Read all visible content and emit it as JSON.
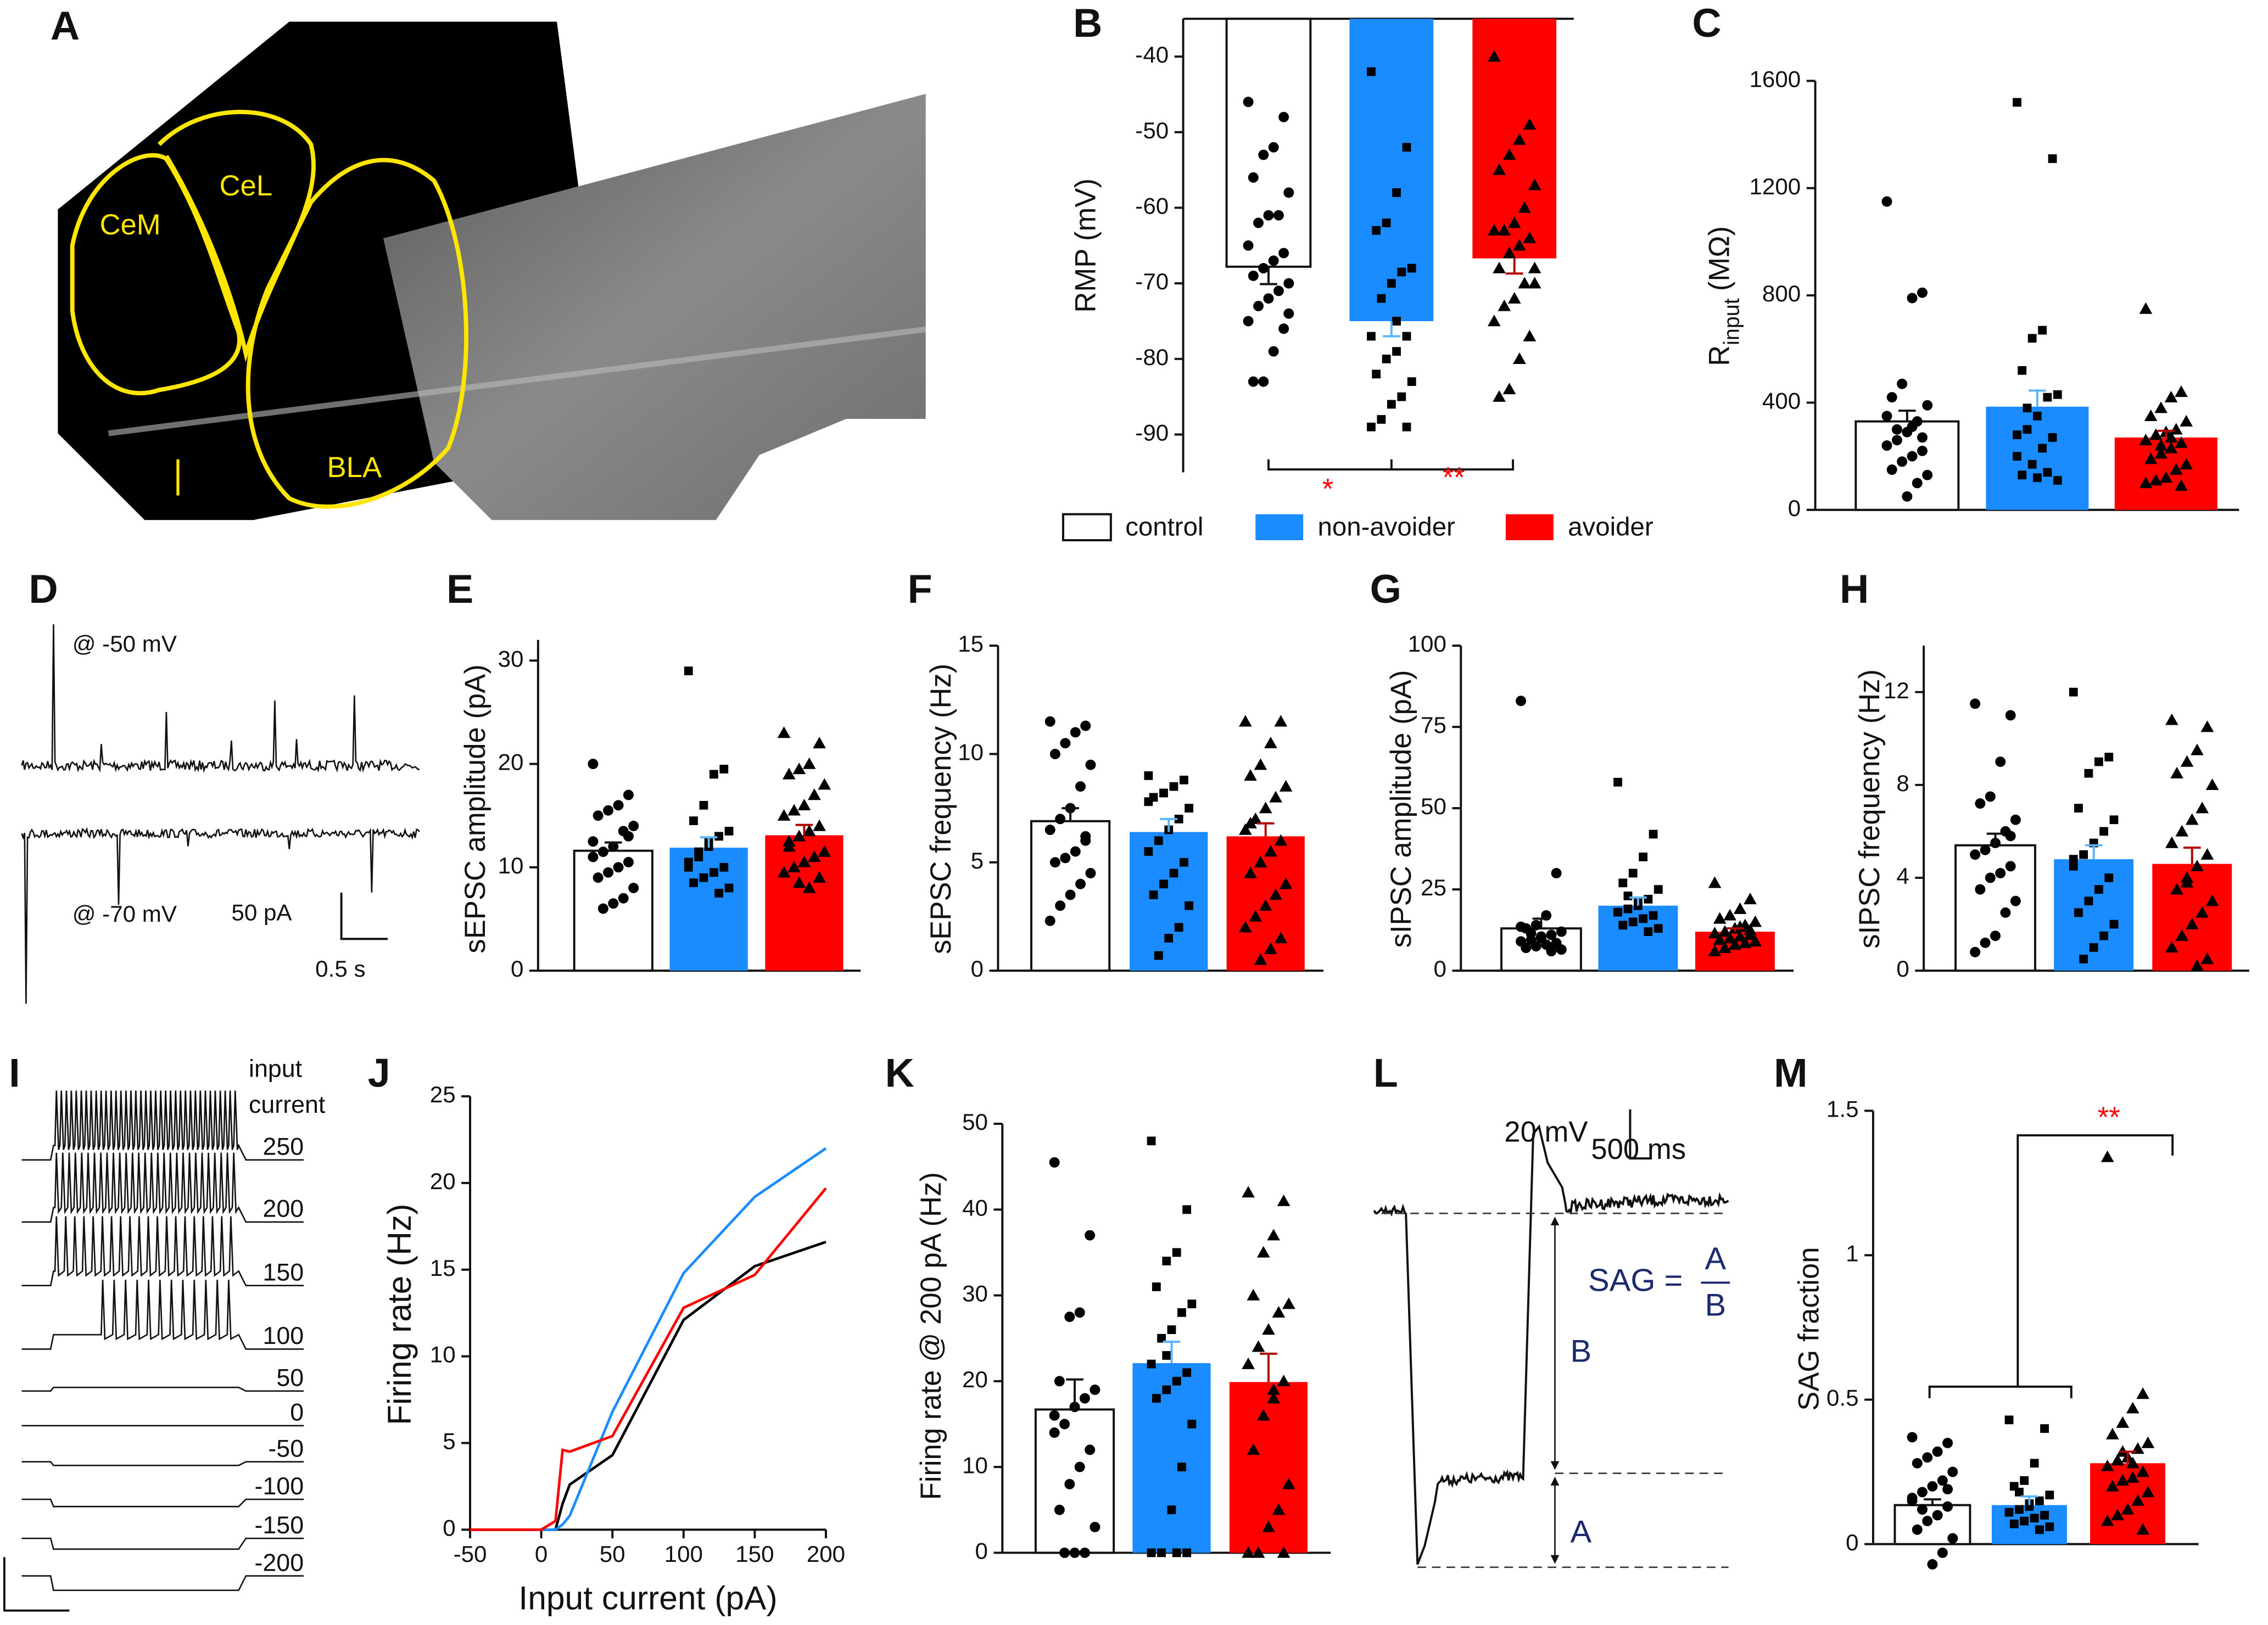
{
  "legend": [
    {
      "name": "control",
      "color": "#ffffff"
    },
    {
      "name": "non-avoider",
      "color": "#1a8cff"
    },
    {
      "name": "avoider",
      "color": "#ff0000"
    }
  ],
  "chart_data": [
    {
      "panel": "A",
      "type": "image",
      "labels": [
        "CeM",
        "CeL",
        "BLA"
      ]
    },
    {
      "panel": "B",
      "type": "bar",
      "ylabel": "RMP (mV)",
      "ylim": [
        -95,
        -35
      ],
      "yticks": [
        -40,
        -50,
        -60,
        -70,
        -80,
        -90
      ],
      "values": [
        -67.8,
        -75,
        -66.7
      ],
      "errors": [
        2.3,
        2,
        2
      ],
      "points": [
        [
          -46,
          -48,
          -52,
          -53,
          -56,
          -58,
          -61,
          -61,
          -62,
          -65,
          -66,
          -67,
          -68,
          -69,
          -70,
          -71,
          -72,
          -73,
          -75,
          -76,
          -79,
          -83,
          -83,
          -74
        ],
        [
          -42,
          -52,
          -58,
          -62,
          -63,
          -68,
          -68.5,
          -70,
          -72,
          -77,
          -77,
          -79,
          -80,
          -82,
          -83,
          -85,
          -86,
          -88,
          -89,
          -89,
          -75
        ],
        [
          -40,
          -49,
          -51,
          -53,
          -55,
          -57,
          -60,
          -62,
          -63,
          -63,
          -64,
          -65,
          -66,
          -68,
          -68,
          -70,
          -72,
          -73,
          -75,
          -77,
          -80,
          -84,
          -85,
          -70
        ]
      ],
      "annotations": [
        "*",
        "**"
      ],
      "annotation_color": "#ff0000"
    },
    {
      "panel": "C",
      "type": "bar",
      "ylabel": "R",
      "ylabel_sub": "input",
      "ylabel_unit": "(MΩ)",
      "ylim": [
        0,
        1600
      ],
      "yticks": [
        0,
        400,
        800,
        1200,
        1600
      ],
      "values": [
        330,
        385,
        270
      ],
      "errors": [
        40,
        60,
        25
      ],
      "points": [
        [
          1150,
          810,
          790,
          470,
          420,
          390,
          330,
          290,
          260,
          240,
          220,
          200,
          180,
          150,
          130,
          100,
          50,
          300,
          350,
          270,
          310
        ],
        [
          1520,
          1310,
          670,
          640,
          520,
          430,
          420,
          350,
          300,
          280,
          270,
          230,
          170,
          130,
          110,
          140,
          120,
          380,
          200
        ],
        [
          750,
          440,
          420,
          380,
          350,
          330,
          300,
          290,
          280,
          260,
          250,
          230,
          210,
          190,
          170,
          150,
          120,
          110,
          100,
          90,
          270,
          240
        ]
      ]
    },
    {
      "panel": "D",
      "type": "traces",
      "labels": [
        "@ -50 mV",
        "@ -70 mV"
      ],
      "scale": [
        "50 pA",
        "0.5 s"
      ]
    },
    {
      "panel": "E",
      "type": "bar",
      "ylabel": "sEPSC amplitude (pA)",
      "ylim": [
        0,
        32
      ],
      "yticks": [
        0,
        10,
        20,
        30
      ],
      "values": [
        11.6,
        11.9,
        13.1
      ],
      "errors": [
        0.8,
        1,
        1
      ],
      "points": [
        [
          20,
          17,
          16,
          15.5,
          15,
          14,
          13.5,
          12,
          11.5,
          11,
          10.5,
          10,
          9.5,
          9,
          8,
          7,
          6.5,
          6,
          12.5,
          13
        ],
        [
          29,
          19.5,
          19,
          16,
          14.5,
          13.5,
          13,
          12,
          11,
          10.5,
          10,
          9.5,
          9,
          8.5,
          8,
          7.5,
          12.5,
          11.5,
          10
        ],
        [
          23,
          22,
          20,
          19.5,
          19,
          18,
          17,
          16,
          15.5,
          15,
          14,
          13.5,
          13,
          12,
          11.5,
          11,
          10.5,
          10,
          9.5,
          9,
          8,
          8.5,
          12.5
        ]
      ]
    },
    {
      "panel": "F",
      "type": "bar",
      "ylabel": "sEPSC frequency (Hz)",
      "ylim": [
        0,
        15
      ],
      "yticks": [
        0,
        5,
        10,
        15
      ],
      "values": [
        6.9,
        6.4,
        6.2
      ],
      "errors": [
        0.6,
        0.6,
        0.6
      ],
      "points": [
        [
          11.5,
          11.3,
          11,
          10.5,
          10,
          9.5,
          8.5,
          7.5,
          7,
          6.5,
          6,
          5.5,
          5.2,
          5,
          4.5,
          4,
          3.5,
          3,
          2.3,
          6.2
        ],
        [
          9,
          8.8,
          8.5,
          8.2,
          8,
          7.5,
          7,
          6.5,
          6,
          5.5,
          5,
          4.5,
          4,
          3.5,
          3,
          2,
          1.5,
          0.7,
          7.8
        ],
        [
          11.5,
          11.5,
          10.5,
          9.5,
          9,
          8.5,
          8,
          7.5,
          7,
          6.5,
          6,
          5.5,
          5,
          4.5,
          4,
          3.5,
          3,
          2.5,
          2,
          1.5,
          1,
          0.5,
          6.8
        ]
      ]
    },
    {
      "panel": "G",
      "type": "bar",
      "ylabel": "sIPSC amplitude (pA)",
      "ylim": [
        0,
        100
      ],
      "yticks": [
        0,
        25,
        50,
        75,
        100
      ],
      "values": [
        13,
        20,
        12
      ],
      "errors": [
        3,
        2.5,
        1
      ],
      "points": [
        [
          83,
          30,
          17,
          14,
          13,
          12,
          11,
          10,
          9.5,
          9,
          8.5,
          8,
          7.5,
          7,
          6.5,
          6,
          10.5,
          11.5,
          13.5,
          8
        ],
        [
          58,
          42,
          35,
          30,
          27,
          25,
          22,
          20,
          19,
          18,
          17,
          16,
          15,
          14,
          13,
          12,
          21,
          23,
          18
        ],
        [
          27,
          22,
          19,
          17,
          16,
          15,
          14,
          13,
          12,
          11.5,
          11,
          10.5,
          10,
          9.5,
          9,
          8.5,
          8,
          7,
          6,
          12.5,
          13.5
        ]
      ]
    },
    {
      "panel": "H",
      "type": "bar",
      "ylabel": "sIPSC frequency (Hz)",
      "ylim": [
        0,
        14
      ],
      "yticks": [
        0,
        4,
        8,
        12
      ],
      "values": [
        5.4,
        4.8,
        4.6
      ],
      "errors": [
        0.5,
        0.6,
        0.7
      ],
      "points": [
        [
          11.5,
          11,
          9,
          7.5,
          7.2,
          6.5,
          6,
          5.5,
          5.2,
          5,
          4.5,
          4.2,
          4,
          3.5,
          3,
          2.5,
          1.5,
          1.2,
          0.8,
          5.8
        ],
        [
          12,
          9.2,
          9,
          8.5,
          7,
          6.5,
          6,
          5.5,
          5,
          4.5,
          4,
          3.5,
          3,
          2.5,
          2,
          1.5,
          1,
          0.5,
          4.8
        ],
        [
          10.8,
          10.5,
          9.5,
          9,
          8.5,
          8,
          7,
          6.5,
          6,
          5.5,
          5,
          4.5,
          4,
          3.5,
          3,
          2.5,
          2,
          1.5,
          1,
          0.5,
          0.2,
          3.8
        ]
      ]
    },
    {
      "panel": "I",
      "type": "steps",
      "label": [
        "input",
        "current"
      ],
      "currents": [
        250,
        200,
        150,
        100,
        50,
        0,
        -50,
        -100,
        -150,
        -200
      ]
    },
    {
      "panel": "J",
      "type": "line",
      "xlabel": "Input current (pA)",
      "ylabel": "Firing rate (Hz)",
      "x": [
        -50,
        0,
        10,
        15,
        20,
        50,
        100,
        150,
        200
      ],
      "xlim": [
        -50,
        200
      ],
      "xticks": [
        -50,
        0,
        50,
        100,
        150,
        200
      ],
      "ylim": [
        0,
        25
      ],
      "yticks": [
        0,
        5,
        10,
        15,
        20,
        25
      ],
      "series": [
        {
          "color": "#000000",
          "values": [
            0,
            0,
            0,
            1.5,
            2.6,
            4.3,
            12.1,
            15.2,
            16.6
          ]
        },
        {
          "color": "#1a8cff",
          "values": [
            0,
            0,
            0,
            0.3,
            0.8,
            6.8,
            14.8,
            19.2,
            22
          ]
        },
        {
          "color": "#ff0000",
          "values": [
            0,
            0,
            0.5,
            4.6,
            4.5,
            5.4,
            12.8,
            14.7,
            19.7
          ]
        }
      ]
    },
    {
      "panel": "K",
      "type": "bar",
      "ylabel": "Firing rate @ 200 pA (Hz)",
      "ylim": [
        0,
        50
      ],
      "yticks": [
        0,
        10,
        20,
        30,
        40,
        50
      ],
      "values": [
        16.7,
        22.1,
        19.9
      ],
      "errors": [
        3.5,
        2.5,
        3.3
      ],
      "points": [
        [
          45.5,
          37,
          28,
          27.5,
          20,
          19,
          18,
          17,
          15,
          14,
          12,
          10,
          8,
          5,
          3,
          0,
          0,
          0,
          16
        ],
        [
          48,
          40,
          35,
          34,
          31,
          29,
          28,
          26,
          25,
          22,
          21,
          20,
          19,
          18,
          15,
          10,
          5,
          0,
          0,
          0,
          0,
          23
        ],
        [
          42,
          41,
          37,
          35,
          30,
          29,
          28,
          26,
          24,
          22,
          20,
          18,
          16,
          12,
          8,
          5,
          3,
          0,
          0,
          0,
          19
        ]
      ]
    },
    {
      "panel": "L",
      "type": "diagram",
      "scale": [
        "20 mV",
        "500 ms"
      ],
      "formula": "SAG =",
      "fraction": [
        "A",
        "B"
      ],
      "labels": [
        "B",
        "A"
      ]
    },
    {
      "panel": "M",
      "type": "bar",
      "ylabel": "SAG fraction",
      "ylim": [
        0,
        1.5
      ],
      "yticks": [
        0,
        0.5,
        1,
        1.5
      ],
      "values": [
        0.135,
        0.135,
        0.28
      ],
      "errors": [
        0.02,
        0.03,
        0.04
      ],
      "points": [
        [
          0.37,
          0.35,
          0.32,
          0.3,
          0.28,
          0.25,
          0.22,
          0.2,
          0.18,
          0.15,
          0.13,
          0.1,
          0.08,
          0.05,
          0.02,
          -0.03,
          -0.07,
          0.12,
          0.16,
          0.19
        ],
        [
          0.43,
          0.4,
          0.28,
          0.22,
          0.2,
          0.17,
          0.15,
          0.13,
          0.12,
          0.11,
          0.1,
          0.09,
          0.08,
          0.07,
          0.06,
          0.05,
          0.14,
          0.18
        ],
        [
          1.34,
          0.52,
          0.47,
          0.42,
          0.38,
          0.35,
          0.33,
          0.3,
          0.29,
          0.27,
          0.25,
          0.23,
          0.22,
          0.2,
          0.18,
          0.15,
          0.12,
          0.1,
          0.08,
          0.05,
          0.28,
          0.32
        ]
      ],
      "annotations": [
        "**"
      ],
      "annotation_color": "#ff0000"
    }
  ]
}
